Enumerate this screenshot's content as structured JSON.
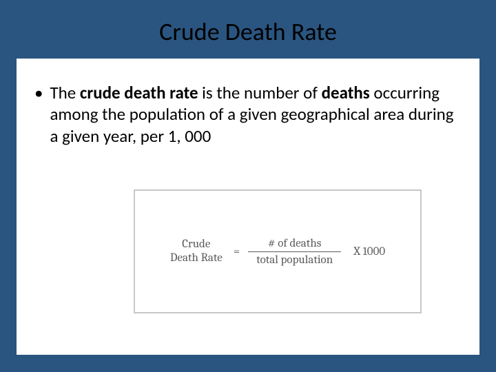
{
  "slide": {
    "title": "Crude Death Rate",
    "background_color": "#2a5580",
    "content_background": "#ffffff"
  },
  "bullet": {
    "marker": "•",
    "text_pre": "The ",
    "text_bold1": "crude death rate",
    "text_mid1": " is the number of ",
    "text_bold2": "deaths",
    "text_mid2": " occurring among the population of a given geographical area during a given year, per 1, 000",
    "font_size": 25,
    "color": "#000000"
  },
  "formula": {
    "label_line1": "Crude",
    "label_line2": "Death Rate",
    "equals": "=",
    "numerator": "# of deaths",
    "denominator": "total population",
    "multiplier": "X 1000",
    "font_family": "Cambria",
    "text_color": "#5a5a5a",
    "box_border_color": "#c7c7c7",
    "box_background": "#ffffff",
    "font_size": 17
  }
}
